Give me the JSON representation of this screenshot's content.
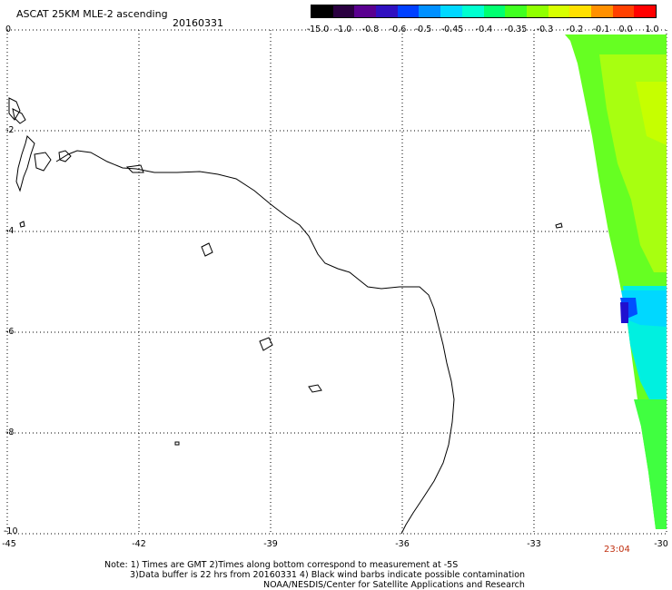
{
  "title": "ASCAT 25KM MLE-2 ascending",
  "date": "20160331",
  "time": "23:04",
  "colorbar": {
    "labels": [
      "-15.0",
      "-1.0",
      "-0.8",
      "-0.6",
      "-0.5",
      "-0.45",
      "-0.4",
      "-0.35",
      "-0.3",
      "-0.2",
      "-0.1",
      "0.0",
      "1.0"
    ],
    "colors": [
      "#000000",
      "#2a0040",
      "#5a0090",
      "#3010c0",
      "#0040ff",
      "#0090ff",
      "#00d8ff",
      "#00ffd0",
      "#00ff70",
      "#40ff20",
      "#90ff00",
      "#d8ff00",
      "#ffe000",
      "#ff9000",
      "#ff4000",
      "#ff0000"
    ]
  },
  "axes": {
    "lat_labels": [
      "0",
      "-2",
      "-4",
      "-6",
      "-8",
      "-10"
    ],
    "lon_labels": [
      "-45",
      "-42",
      "-39",
      "-36",
      "-33",
      "-30"
    ]
  },
  "notes": {
    "line1": "Note: 1) Times are GMT 2)Times along bottom correspond to measurement at -5S",
    "line2": "3)Data buffer is 22 hrs from 20160331 4) Black wind barbs indicate possible contamination",
    "line3": "NOAA/NESDIS/Center for Satellite Applications and Research"
  }
}
